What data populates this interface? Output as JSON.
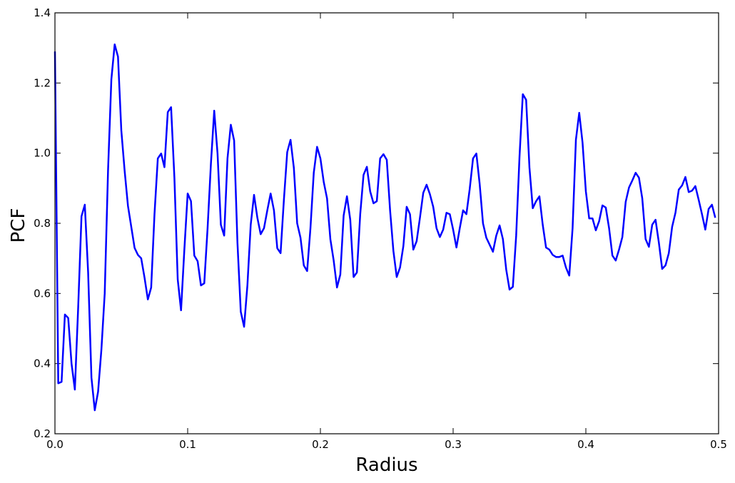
{
  "chart_data": {
    "type": "line",
    "x_label": "Radius",
    "y_label": "PCF",
    "x": [
      0,
      0.0025,
      0.005,
      0.0075,
      0.01,
      0.0125,
      0.015,
      0.0175,
      0.02,
      0.0225,
      0.025,
      0.0275,
      0.03,
      0.0325,
      0.035,
      0.0375,
      0.04,
      0.0425,
      0.045,
      0.0475,
      0.05,
      0.0525,
      0.055,
      0.0575,
      0.06,
      0.0625,
      0.065,
      0.0675,
      0.07,
      0.0725,
      0.075,
      0.0775,
      0.08,
      0.0825,
      0.085,
      0.0875,
      0.09,
      0.0925,
      0.095,
      0.0975,
      0.1,
      0.1025,
      0.105,
      0.1075,
      0.11,
      0.1125,
      0.115,
      0.1175,
      0.12,
      0.1225,
      0.125,
      0.1275,
      0.13,
      0.1325,
      0.135,
      0.1375,
      0.14,
      0.1425,
      0.145,
      0.1475,
      0.15,
      0.1525,
      0.155,
      0.1575,
      0.16,
      0.1625,
      0.165,
      0.1675,
      0.17,
      0.1725,
      0.175,
      0.1775,
      0.18,
      0.1825,
      0.185,
      0.1875,
      0.19,
      0.1925,
      0.195,
      0.1975,
      0.2,
      0.2025,
      0.205,
      0.2075,
      0.21,
      0.2125,
      0.215,
      0.2175,
      0.22,
      0.2225,
      0.225,
      0.2275,
      0.23,
      0.2325,
      0.235,
      0.2375,
      0.24,
      0.2425,
      0.245,
      0.2475,
      0.25,
      0.2525,
      0.255,
      0.2575,
      0.26,
      0.2625,
      0.265,
      0.2675,
      0.27,
      0.2725,
      0.275,
      0.2775,
      0.28,
      0.2825,
      0.285,
      0.2875,
      0.29,
      0.2925,
      0.295,
      0.2975,
      0.3,
      0.3025,
      0.305,
      0.3075,
      0.31,
      0.3125,
      0.315,
      0.3175,
      0.32,
      0.3225,
      0.325,
      0.3275,
      0.33,
      0.3325,
      0.335,
      0.3375,
      0.34,
      0.3425,
      0.345,
      0.3475,
      0.35,
      0.3525,
      0.355,
      0.3575,
      0.36,
      0.3625,
      0.365,
      0.3675,
      0.37,
      0.3725,
      0.375,
      0.3775,
      0.38,
      0.3825,
      0.385,
      0.3875,
      0.39,
      0.3925,
      0.395,
      0.3975,
      0.4,
      0.4025,
      0.405,
      0.4075,
      0.41,
      0.4125,
      0.415,
      0.4175,
      0.42,
      0.4225,
      0.425,
      0.4275,
      0.43,
      0.4325,
      0.435,
      0.4375,
      0.44,
      0.4425,
      0.445,
      0.4475,
      0.45,
      0.4525,
      0.455,
      0.4575,
      0.46,
      0.4625,
      0.465,
      0.4675,
      0.47,
      0.4725,
      0.475,
      0.4775,
      0.48,
      0.4825,
      0.485,
      0.4875,
      0.49,
      0.4925,
      0.495,
      0.4975
    ],
    "series": [
      {
        "color": "#0000ff",
        "values": [
          1.29,
          0.344,
          0.348,
          0.54,
          0.53,
          0.4,
          0.326,
          0.56,
          0.82,
          0.853,
          0.66,
          0.36,
          0.267,
          0.32,
          0.44,
          0.6,
          0.95,
          1.21,
          1.31,
          1.275,
          1.065,
          0.95,
          0.85,
          0.79,
          0.73,
          0.71,
          0.7,
          0.645,
          0.583,
          0.617,
          0.826,
          0.985,
          0.999,
          0.96,
          1.117,
          1.131,
          0.93,
          0.64,
          0.552,
          0.725,
          0.885,
          0.863,
          0.708,
          0.692,
          0.623,
          0.629,
          0.786,
          0.969,
          1.121,
          0.999,
          0.796,
          0.765,
          0.985,
          1.081,
          1.036,
          0.745,
          0.548,
          0.505,
          0.623,
          0.796,
          0.881,
          0.816,
          0.769,
          0.786,
          0.837,
          0.885,
          0.837,
          0.729,
          0.715,
          0.867,
          1.003,
          1.038,
          0.958,
          0.8,
          0.759,
          0.68,
          0.664,
          0.786,
          0.944,
          1.018,
          0.985,
          0.918,
          0.871,
          0.755,
          0.694,
          0.617,
          0.654,
          0.822,
          0.877,
          0.81,
          0.647,
          0.66,
          0.826,
          0.938,
          0.961,
          0.891,
          0.857,
          0.863,
          0.985,
          0.997,
          0.981,
          0.837,
          0.721,
          0.647,
          0.674,
          0.735,
          0.847,
          0.826,
          0.725,
          0.749,
          0.816,
          0.887,
          0.91,
          0.883,
          0.847,
          0.786,
          0.761,
          0.782,
          0.83,
          0.826,
          0.782,
          0.731,
          0.786,
          0.837,
          0.826,
          0.898,
          0.985,
          0.999,
          0.912,
          0.8,
          0.759,
          0.739,
          0.719,
          0.765,
          0.794,
          0.755,
          0.668,
          0.611,
          0.619,
          0.765,
          0.989,
          1.168,
          1.152,
          0.959,
          0.843,
          0.863,
          0.877,
          0.796,
          0.731,
          0.725,
          0.71,
          0.704,
          0.704,
          0.708,
          0.674,
          0.651,
          0.786,
          1.038,
          1.115,
          1.03,
          0.891,
          0.814,
          0.814,
          0.78,
          0.806,
          0.851,
          0.845,
          0.786,
          0.708,
          0.694,
          0.725,
          0.761,
          0.861,
          0.902,
          0.922,
          0.944,
          0.93,
          0.871,
          0.755,
          0.733,
          0.796,
          0.81,
          0.745,
          0.67,
          0.68,
          0.715,
          0.79,
          0.83,
          0.896,
          0.908,
          0.932,
          0.889,
          0.893,
          0.906,
          0.867,
          0.826,
          0.782,
          0.841,
          0.853,
          0.816
        ]
      }
    ],
    "xlim": [
      0,
      0.5
    ],
    "xticks": [
      {
        "value": 0,
        "label": "0.0"
      },
      0.1,
      0.2,
      0.3,
      0.4,
      0.5
    ],
    "ylim": [
      0.2,
      1.4
    ],
    "yticks": [
      0.2,
      0.4,
      0.6,
      0.8,
      {
        "value": 1,
        "label": "1.0"
      },
      1.2,
      1.4
    ],
    "grid": false
  }
}
